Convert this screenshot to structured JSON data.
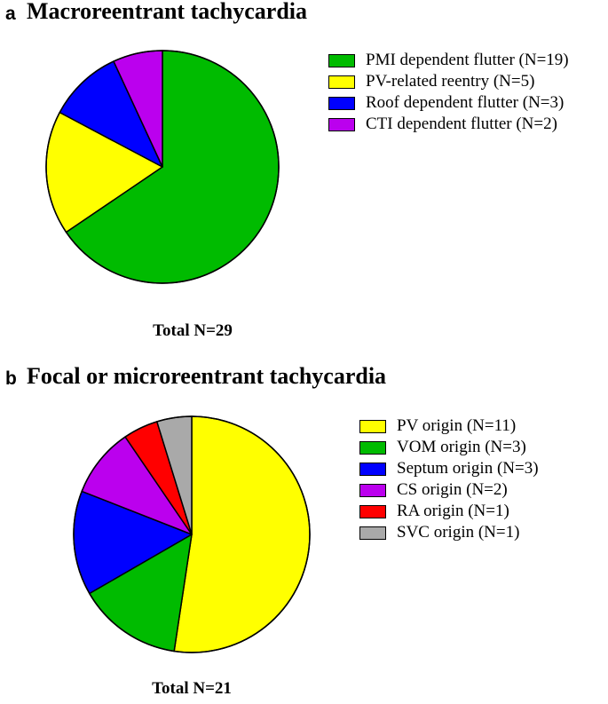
{
  "chart_data": [
    {
      "type": "pie",
      "panel_letter": "a",
      "title": "Macroreentrant tachycardia",
      "total_label": "Total N=29",
      "start_angle_deg": 0,
      "direction": "clockwise",
      "legend_position": "right",
      "slices": [
        {
          "label": "PMI dependent flutter (N=19)",
          "value": 19,
          "color": "#00bb00"
        },
        {
          "label": "PV-related reentry (N=5)",
          "value": 5,
          "color": "#ffff00"
        },
        {
          "label": "Roof dependent flutter (N=3)",
          "value": 3,
          "color": "#0000ff"
        },
        {
          "label": "CTI dependent flutter (N=2)",
          "value": 2,
          "color": "#bb00ee"
        }
      ]
    },
    {
      "type": "pie",
      "panel_letter": "b",
      "title": "Focal or microreentrant tachycardia",
      "total_label": "Total N=21",
      "start_angle_deg": 0,
      "direction": "clockwise",
      "legend_position": "right",
      "slices": [
        {
          "label": "PV origin (N=11)",
          "value": 11,
          "color": "#ffff00"
        },
        {
          "label": "VOM origin (N=3)",
          "value": 3,
          "color": "#00bb00"
        },
        {
          "label": "Septum origin (N=3)",
          "value": 3,
          "color": "#0000ff"
        },
        {
          "label": "CS origin (N=2)",
          "value": 2,
          "color": "#bb00ee"
        },
        {
          "label": "RA origin (N=1)",
          "value": 1,
          "color": "#ff0000"
        },
        {
          "label": "SVC origin (N=1)",
          "value": 1,
          "color": "#a9a9a9"
        }
      ]
    }
  ]
}
